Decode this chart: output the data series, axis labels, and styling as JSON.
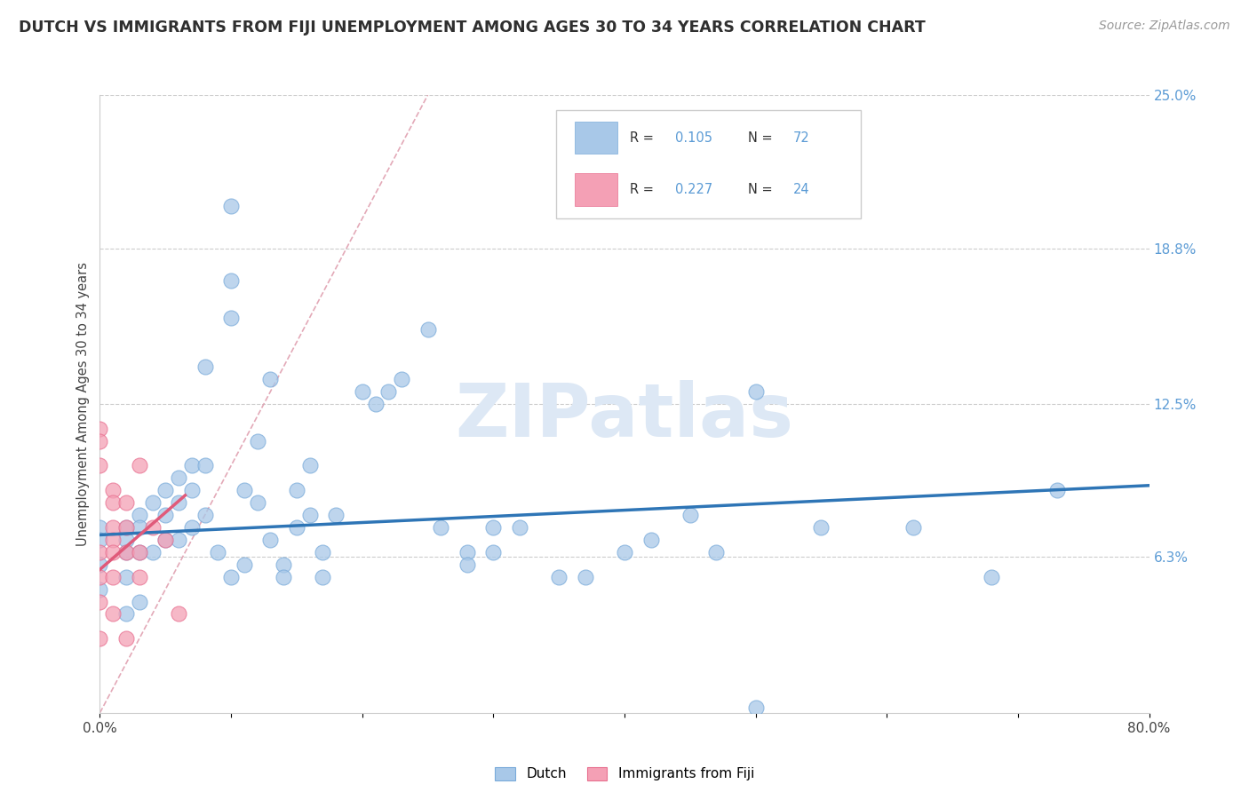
{
  "title": "DUTCH VS IMMIGRANTS FROM FIJI UNEMPLOYMENT AMONG AGES 30 TO 34 YEARS CORRELATION CHART",
  "source": "Source: ZipAtlas.com",
  "ylabel": "Unemployment Among Ages 30 to 34 years",
  "xlim": [
    0.0,
    0.8
  ],
  "ylim": [
    0.0,
    0.25
  ],
  "x_ticks": [
    0.0,
    0.1,
    0.2,
    0.3,
    0.4,
    0.5,
    0.6,
    0.7,
    0.8
  ],
  "y_tick_right": [
    0.0,
    0.063,
    0.125,
    0.188,
    0.25
  ],
  "y_tick_right_labels": [
    "",
    "6.3%",
    "12.5%",
    "18.8%",
    "25.0%"
  ],
  "title_color": "#2f2f2f",
  "title_fontsize": 12.5,
  "source_color": "#999999",
  "source_fontsize": 10,
  "legend_color": "#5b9bd5",
  "blue_color": "#a8c8e8",
  "pink_color": "#f4a0b5",
  "blue_edge_color": "#7aabda",
  "pink_edge_color": "#e87090",
  "blue_line_color": "#2e75b6",
  "pink_line_color": "#e05a7a",
  "diag_line_color": "#e0a0b0",
  "watermark_text": "ZIPatlas",
  "watermark_color": "#dde8f5",
  "watermark_fontsize": 60,
  "dutch_points_x": [
    0.0,
    0.0,
    0.0,
    0.0,
    0.02,
    0.02,
    0.02,
    0.02,
    0.02,
    0.03,
    0.03,
    0.03,
    0.03,
    0.04,
    0.04,
    0.05,
    0.05,
    0.05,
    0.06,
    0.06,
    0.06,
    0.07,
    0.07,
    0.07,
    0.08,
    0.08,
    0.08,
    0.09,
    0.1,
    0.1,
    0.1,
    0.1,
    0.11,
    0.11,
    0.12,
    0.12,
    0.13,
    0.13,
    0.14,
    0.14,
    0.15,
    0.15,
    0.16,
    0.16,
    0.17,
    0.17,
    0.18,
    0.2,
    0.21,
    0.22,
    0.23,
    0.25,
    0.26,
    0.28,
    0.28,
    0.3,
    0.3,
    0.32,
    0.35,
    0.37,
    0.4,
    0.42,
    0.45,
    0.47,
    0.5,
    0.55,
    0.62,
    0.68,
    0.73,
    0.5
  ],
  "dutch_points_y": [
    0.075,
    0.07,
    0.06,
    0.05,
    0.075,
    0.07,
    0.065,
    0.055,
    0.04,
    0.08,
    0.075,
    0.065,
    0.045,
    0.085,
    0.065,
    0.09,
    0.08,
    0.07,
    0.095,
    0.085,
    0.07,
    0.1,
    0.09,
    0.075,
    0.14,
    0.1,
    0.08,
    0.065,
    0.205,
    0.175,
    0.16,
    0.055,
    0.09,
    0.06,
    0.11,
    0.085,
    0.135,
    0.07,
    0.06,
    0.055,
    0.09,
    0.075,
    0.1,
    0.08,
    0.065,
    0.055,
    0.08,
    0.13,
    0.125,
    0.13,
    0.135,
    0.155,
    0.075,
    0.065,
    0.06,
    0.075,
    0.065,
    0.075,
    0.055,
    0.055,
    0.065,
    0.07,
    0.08,
    0.065,
    0.13,
    0.075,
    0.075,
    0.055,
    0.09,
    0.002
  ],
  "fiji_points_x": [
    0.0,
    0.0,
    0.0,
    0.0,
    0.0,
    0.0,
    0.0,
    0.01,
    0.01,
    0.01,
    0.01,
    0.01,
    0.01,
    0.01,
    0.02,
    0.02,
    0.02,
    0.02,
    0.03,
    0.03,
    0.03,
    0.04,
    0.05,
    0.06
  ],
  "fiji_points_y": [
    0.115,
    0.11,
    0.1,
    0.065,
    0.055,
    0.045,
    0.03,
    0.09,
    0.085,
    0.075,
    0.07,
    0.065,
    0.055,
    0.04,
    0.085,
    0.075,
    0.065,
    0.03,
    0.1,
    0.065,
    0.055,
    0.075,
    0.07,
    0.04
  ],
  "blue_trend_x": [
    0.0,
    0.8
  ],
  "blue_trend_y": [
    0.072,
    0.092
  ],
  "pink_trend_x": [
    0.0,
    0.065
  ],
  "pink_trend_y": [
    0.058,
    0.088
  ],
  "diag_line_x": [
    0.0,
    0.25
  ],
  "diag_line_y": [
    0.0,
    0.25
  ]
}
